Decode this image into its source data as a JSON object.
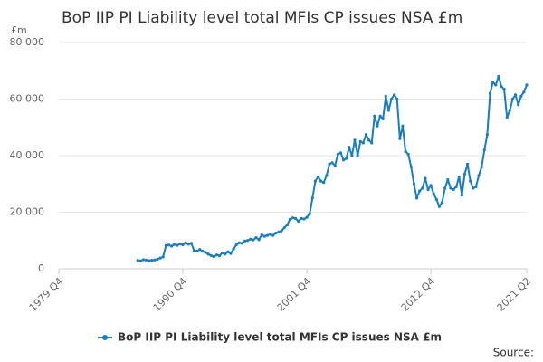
{
  "chart_data": {
    "type": "line",
    "title": "BoP IIP PI Liability level total MFIs CP issues NSA £m",
    "y_unit": "£m",
    "source": "Source:",
    "categories": [
      "1979 Q4",
      "1980 Q1",
      "1980 Q2",
      "1980 Q3",
      "1980 Q4",
      "1981 Q1",
      "1981 Q2",
      "1981 Q3",
      "1981 Q4",
      "1982 Q1",
      "1982 Q2",
      "1982 Q3",
      "1982 Q4",
      "1983 Q1",
      "1983 Q2",
      "1983 Q3",
      "1983 Q4",
      "1984 Q1",
      "1984 Q2",
      "1984 Q3",
      "1984 Q4",
      "1985 Q1",
      "1985 Q2",
      "1985 Q3",
      "1985 Q4",
      "1986 Q1",
      "1986 Q2",
      "1986 Q3",
      "1986 Q4",
      "1987 Q1",
      "1987 Q2",
      "1987 Q3",
      "1987 Q4",
      "1988 Q1",
      "1988 Q2",
      "1988 Q3",
      "1988 Q4",
      "1989 Q1",
      "1989 Q2",
      "1989 Q3",
      "1989 Q4",
      "1990 Q1",
      "1990 Q2",
      "1990 Q3",
      "1990 Q4",
      "1991 Q1",
      "1991 Q2",
      "1991 Q3",
      "1991 Q4",
      "1992 Q1",
      "1992 Q2",
      "1992 Q3",
      "1992 Q4",
      "1993 Q1",
      "1993 Q2",
      "1993 Q3",
      "1993 Q4",
      "1994 Q1",
      "1994 Q2",
      "1994 Q3",
      "1994 Q4",
      "1995 Q1",
      "1995 Q2",
      "1995 Q3",
      "1995 Q4",
      "1996 Q1",
      "1996 Q2",
      "1996 Q3",
      "1996 Q4",
      "1997 Q1",
      "1997 Q2",
      "1997 Q3",
      "1997 Q4",
      "1998 Q1",
      "1998 Q2",
      "1998 Q3",
      "1998 Q4",
      "1999 Q1",
      "1999 Q2",
      "1999 Q3",
      "1999 Q4",
      "2000 Q1",
      "2000 Q2",
      "2000 Q3",
      "2000 Q4",
      "2001 Q1",
      "2001 Q2",
      "2001 Q3",
      "2001 Q4",
      "2002 Q1",
      "2002 Q2",
      "2002 Q3",
      "2002 Q4",
      "2003 Q1",
      "2003 Q2",
      "2003 Q3",
      "2003 Q4",
      "2004 Q1",
      "2004 Q2",
      "2004 Q3",
      "2004 Q4",
      "2005 Q1",
      "2005 Q2",
      "2005 Q3",
      "2005 Q4",
      "2006 Q1",
      "2006 Q2",
      "2006 Q3",
      "2006 Q4",
      "2007 Q1",
      "2007 Q2",
      "2007 Q3",
      "2007 Q4",
      "2008 Q1",
      "2008 Q2",
      "2008 Q3",
      "2008 Q4",
      "2009 Q1",
      "2009 Q2",
      "2009 Q3",
      "2009 Q4",
      "2010 Q1",
      "2010 Q2",
      "2010 Q3",
      "2010 Q4",
      "2011 Q1",
      "2011 Q2",
      "2011 Q3",
      "2011 Q4",
      "2012 Q1",
      "2012 Q2",
      "2012 Q3",
      "2012 Q4",
      "2013 Q1",
      "2013 Q2",
      "2013 Q3",
      "2013 Q4",
      "2014 Q1",
      "2014 Q2",
      "2014 Q3",
      "2014 Q4",
      "2015 Q1",
      "2015 Q2",
      "2015 Q3",
      "2015 Q4",
      "2016 Q1",
      "2016 Q2",
      "2016 Q3",
      "2016 Q4",
      "2017 Q1",
      "2017 Q2",
      "2017 Q3",
      "2017 Q4",
      "2018 Q1",
      "2018 Q2",
      "2018 Q3",
      "2018 Q4",
      "2019 Q1",
      "2019 Q2",
      "2019 Q3",
      "2019 Q4",
      "2020 Q1",
      "2020 Q2",
      "2020 Q3",
      "2020 Q4",
      "2021 Q1",
      "2021 Q2"
    ],
    "series": [
      {
        "name": "BoP IIP PI Liability level total MFIs CP issues NSA £m",
        "color": "#1a7dbf",
        "values": [
          null,
          null,
          null,
          null,
          null,
          null,
          null,
          null,
          null,
          null,
          null,
          null,
          null,
          null,
          null,
          null,
          null,
          null,
          null,
          null,
          null,
          null,
          null,
          null,
          null,
          null,
          null,
          null,
          3000,
          2800,
          3200,
          3100,
          2900,
          3000,
          3100,
          3400,
          3800,
          4200,
          8200,
          8400,
          8000,
          8600,
          8300,
          8800,
          8500,
          9200,
          8700,
          9000,
          6500,
          6300,
          6800,
          6200,
          5800,
          5200,
          4700,
          4300,
          4900,
          4600,
          5600,
          5200,
          6000,
          5400,
          7000,
          8500,
          9200,
          9000,
          9800,
          10000,
          10500,
          10200,
          11000,
          10300,
          12000,
          11500,
          11800,
          12200,
          11800,
          12600,
          13000,
          13400,
          14500,
          15500,
          17500,
          18000,
          17800,
          16800,
          17800,
          17600,
          18200,
          19500,
          25000,
          31000,
          32500,
          31000,
          30500,
          33000,
          37000,
          37500,
          36500,
          40500,
          41000,
          38500,
          39000,
          43000,
          40000,
          45500,
          40000,
          45000,
          44500,
          47500,
          45500,
          44500,
          54000,
          50500,
          54000,
          53000,
          61000,
          56000,
          60000,
          61500,
          60000,
          46000,
          50500,
          41500,
          40500,
          36000,
          30000,
          25000,
          27500,
          28500,
          32000,
          28000,
          29500,
          26500,
          24500,
          22000,
          23500,
          28500,
          31500,
          28500,
          28000,
          29000,
          32500,
          26000,
          33500,
          37000,
          31000,
          28500,
          29000,
          33000,
          36000,
          42000,
          47500,
          62000,
          66000,
          65000,
          68000,
          64500,
          63500,
          53500,
          56000,
          60000,
          61500,
          58000,
          61000,
          62500,
          65000
        ]
      }
    ],
    "xticks": [
      "1979 Q4",
      "1990 Q4",
      "2001 Q4",
      "2012 Q4",
      "2021 Q2"
    ],
    "ylim": [
      0,
      80000
    ],
    "yticks": [
      0,
      {
        "value": 20000,
        "label": "20 000"
      },
      {
        "value": 40000,
        "label": "40 000"
      },
      {
        "value": 60000,
        "label": "60 000"
      },
      {
        "value": 80000,
        "label": "80 000"
      }
    ],
    "grid": true
  }
}
